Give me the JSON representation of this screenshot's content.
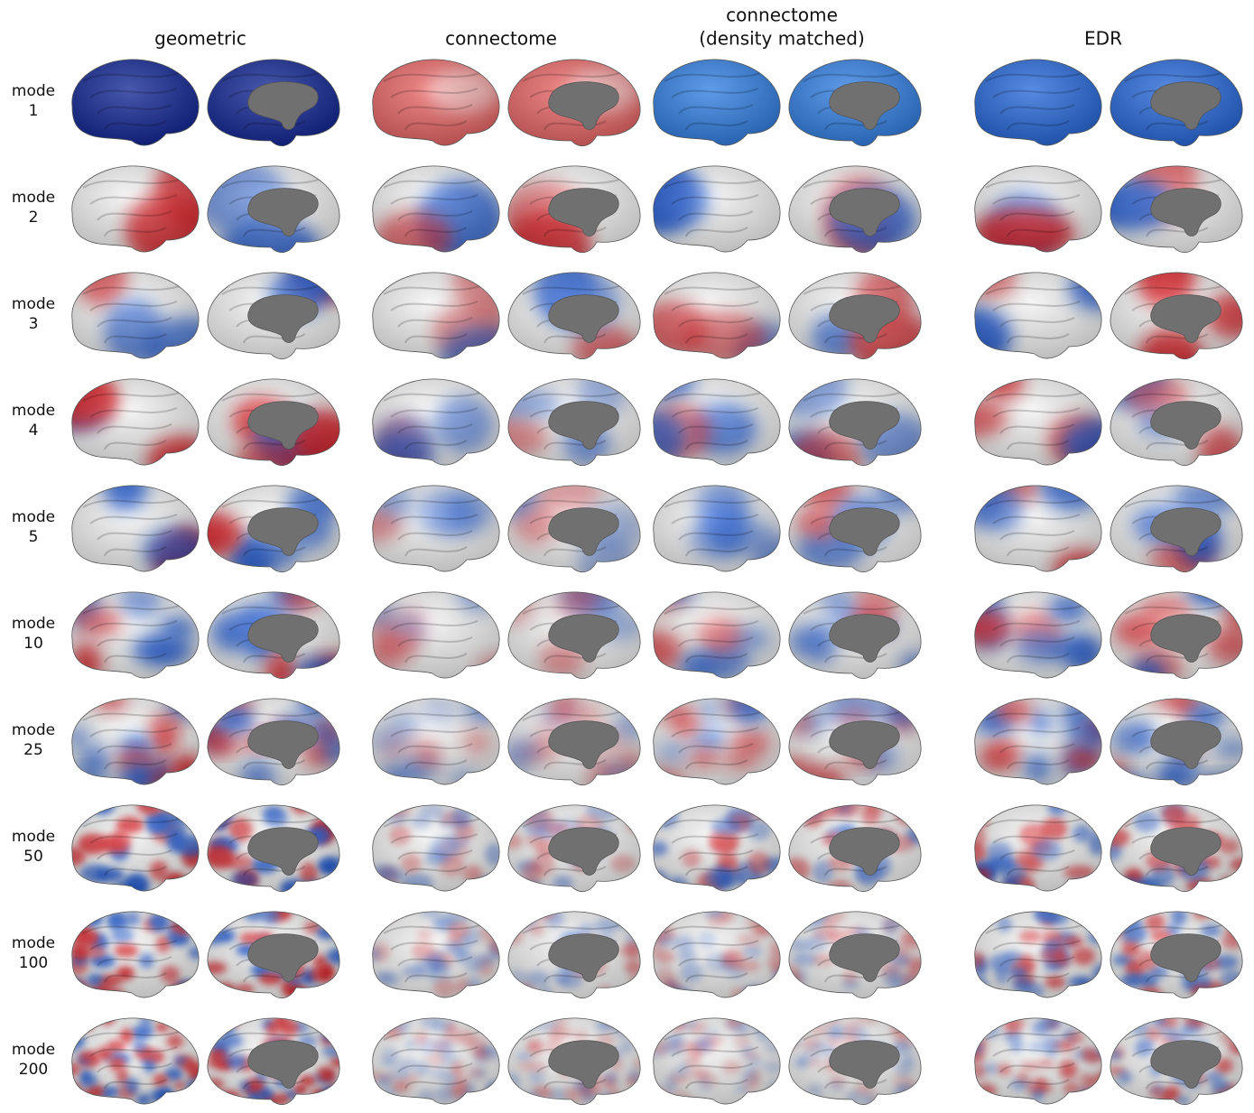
{
  "columns": [
    [
      "geometric"
    ],
    [
      "connectome"
    ],
    [
      "connectome",
      "(density matched)"
    ],
    [
      "EDR"
    ]
  ],
  "rows": [
    [
      "mode",
      "1"
    ],
    [
      "mode",
      "2"
    ],
    [
      "mode",
      "3"
    ],
    [
      "mode",
      "4"
    ],
    [
      "mode",
      "5"
    ],
    [
      "mode",
      "10"
    ],
    [
      "mode",
      "25"
    ],
    [
      "mode",
      "50"
    ],
    [
      "mode",
      "100"
    ],
    [
      "mode",
      "200"
    ]
  ]
}
